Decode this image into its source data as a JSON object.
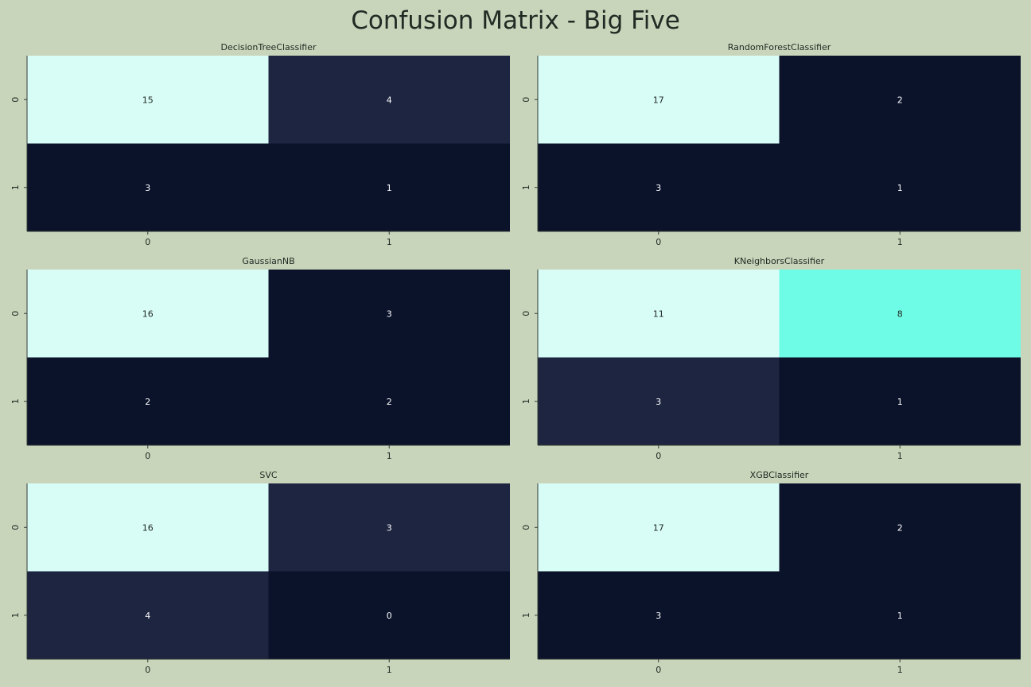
{
  "figure": {
    "title": "Confusion Matrix - Big Five"
  },
  "colors": {
    "background": "#c9d5bb",
    "cell_light": "#d8fdf7",
    "cell_mid": "#1d2540",
    "cell_dark": "#0b132b",
    "cell_accent": "#6ffce6",
    "text_dark": "#222a24",
    "text_light": "#ffffff"
  },
  "chart_data": [
    {
      "type": "heatmap",
      "title": "DecisionTreeClassifier",
      "x_ticks": [
        "0",
        "1"
      ],
      "y_ticks": [
        "0",
        "1"
      ],
      "values": [
        [
          15,
          4
        ],
        [
          3,
          1
        ]
      ],
      "cell_colors": [
        [
          "#d8fdf7",
          "#1d2540"
        ],
        [
          "#0b132b",
          "#0b132b"
        ]
      ]
    },
    {
      "type": "heatmap",
      "title": "RandomForestClassifier",
      "x_ticks": [
        "0",
        "1"
      ],
      "y_ticks": [
        "0",
        "1"
      ],
      "values": [
        [
          17,
          2
        ],
        [
          3,
          1
        ]
      ],
      "cell_colors": [
        [
          "#d8fdf7",
          "#0b132b"
        ],
        [
          "#0b132b",
          "#0b132b"
        ]
      ]
    },
    {
      "type": "heatmap",
      "title": "GaussianNB",
      "x_ticks": [
        "0",
        "1"
      ],
      "y_ticks": [
        "0",
        "1"
      ],
      "values": [
        [
          16,
          3
        ],
        [
          2,
          2
        ]
      ],
      "cell_colors": [
        [
          "#d8fdf7",
          "#0b132b"
        ],
        [
          "#0b132b",
          "#0b132b"
        ]
      ]
    },
    {
      "type": "heatmap",
      "title": "KNeighborsClassifier",
      "x_ticks": [
        "0",
        "1"
      ],
      "y_ticks": [
        "0",
        "1"
      ],
      "values": [
        [
          11,
          8
        ],
        [
          3,
          1
        ]
      ],
      "cell_colors": [
        [
          "#d8fdf7",
          "#6ffce6"
        ],
        [
          "#1d2540",
          "#0b132b"
        ]
      ]
    },
    {
      "type": "heatmap",
      "title": "SVC",
      "x_ticks": [
        "0",
        "1"
      ],
      "y_ticks": [
        "0",
        "1"
      ],
      "values": [
        [
          16,
          3
        ],
        [
          4,
          0
        ]
      ],
      "cell_colors": [
        [
          "#d8fdf7",
          "#1d2540"
        ],
        [
          "#1d2540",
          "#0b132b"
        ]
      ]
    },
    {
      "type": "heatmap",
      "title": "XGBClassifier",
      "x_ticks": [
        "0",
        "1"
      ],
      "y_ticks": [
        "0",
        "1"
      ],
      "values": [
        [
          17,
          2
        ],
        [
          3,
          1
        ]
      ],
      "cell_colors": [
        [
          "#d8fdf7",
          "#0b132b"
        ],
        [
          "#0b132b",
          "#0b132b"
        ]
      ]
    }
  ]
}
